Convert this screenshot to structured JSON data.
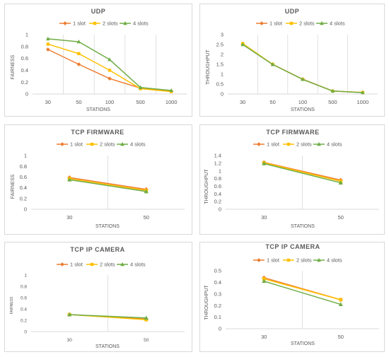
{
  "colors": {
    "1 slot": "#ED7D31",
    "2 slots": "#FFC000",
    "4 slots": "#70AD47"
  },
  "chart_data": [
    {
      "type": "line",
      "title": "UDP",
      "xlabel": "STATIONS",
      "ylabel": "FAIRNESS",
      "categories": [
        "30",
        "50",
        "100",
        "500",
        "1000"
      ],
      "ylim": [
        0,
        1
      ],
      "yticks": [
        "0",
        "0.2",
        "0.4",
        "0.6",
        "0.8",
        "1"
      ],
      "grid": "vertical",
      "legend": "top",
      "series": [
        {
          "name": "1 slot",
          "values": [
            0.75,
            0.5,
            0.26,
            0.1,
            0.05
          ]
        },
        {
          "name": "2 slots",
          "values": [
            0.84,
            0.68,
            0.4,
            0.09,
            0.04
          ]
        },
        {
          "name": "4 slots",
          "values": [
            0.93,
            0.88,
            0.58,
            0.11,
            0.06
          ]
        }
      ]
    },
    {
      "type": "line",
      "title": "UDP",
      "xlabel": "STATIONS",
      "ylabel": "THROUGHPUT",
      "categories": [
        "30",
        "50",
        "100",
        "500",
        "1000"
      ],
      "ylim": [
        0,
        3
      ],
      "yticks": [
        "0",
        "0.5",
        "1",
        "1.5",
        "2",
        "2.5",
        "3"
      ],
      "grid": "vertical",
      "legend": "top",
      "series": [
        {
          "name": "1 slot",
          "values": [
            2.52,
            1.5,
            0.75,
            0.15,
            0.08
          ]
        },
        {
          "name": "2 slots",
          "values": [
            2.55,
            1.5,
            0.74,
            0.15,
            0.08
          ]
        },
        {
          "name": "4 slots",
          "values": [
            2.5,
            1.49,
            0.74,
            0.15,
            0.07
          ]
        }
      ]
    },
    {
      "type": "line",
      "title": "TCP FIRMWARE",
      "xlabel": "STATIONS",
      "ylabel": "FAIRNESS",
      "categories": [
        "30",
        "50"
      ],
      "ylim": [
        0,
        1
      ],
      "yticks": [
        "0",
        "0.2",
        "0.4",
        "0.6",
        "0.8",
        "1"
      ],
      "grid": "vertical",
      "legend": "top",
      "series": [
        {
          "name": "1 slot",
          "values": [
            0.59,
            0.37
          ]
        },
        {
          "name": "2 slots",
          "values": [
            0.57,
            0.35
          ]
        },
        {
          "name": "4 slots",
          "values": [
            0.55,
            0.33
          ]
        }
      ]
    },
    {
      "type": "line",
      "title": "TCP FIRMWARE",
      "xlabel": "STATIONS",
      "ylabel": "THROUGHPUT",
      "categories": [
        "30",
        "50"
      ],
      "ylim": [
        0,
        1.4
      ],
      "yticks": [
        "0",
        "0.2",
        "0.4",
        "0.6",
        "0.8",
        "1",
        "1.2",
        "1.4"
      ],
      "grid": "vertical",
      "legend": "top",
      "series": [
        {
          "name": "1 slot",
          "values": [
            1.22,
            0.76
          ]
        },
        {
          "name": "2 slots",
          "values": [
            1.21,
            0.73
          ]
        },
        {
          "name": "4 slots",
          "values": [
            1.19,
            0.69
          ]
        }
      ]
    },
    {
      "type": "line",
      "title": "TCP IP CAMERA",
      "xlabel": "STATIONS",
      "ylabel": "FAIRNESS",
      "categories": [
        "30",
        "50"
      ],
      "ylim": [
        0,
        1
      ],
      "yticks": [
        "0",
        "0.2",
        "0.4",
        "0.6",
        "0.8",
        "1"
      ],
      "grid": "vertical",
      "legend": "top",
      "series": [
        {
          "name": "1 slot",
          "values": [
            0.3,
            0.22
          ]
        },
        {
          "name": "2 slots",
          "values": [
            0.3,
            0.21
          ]
        },
        {
          "name": "4 slots",
          "values": [
            0.3,
            0.24
          ]
        }
      ]
    },
    {
      "type": "line",
      "title": "TCP IP CAMERA",
      "xlabel": "STATIONS",
      "ylabel": "THROUGHPUT",
      "categories": [
        "30",
        "50"
      ],
      "ylim": [
        0,
        0.5
      ],
      "yticks": [
        "0",
        "0.1",
        "0.2",
        "0.3",
        "0.4",
        "0.5"
      ],
      "grid": "vertical",
      "legend": "top",
      "series": [
        {
          "name": "1 slot",
          "values": [
            0.44,
            0.25
          ]
        },
        {
          "name": "2 slots",
          "values": [
            0.43,
            0.25
          ]
        },
        {
          "name": "4 slots",
          "values": [
            0.41,
            0.21
          ]
        }
      ]
    }
  ]
}
